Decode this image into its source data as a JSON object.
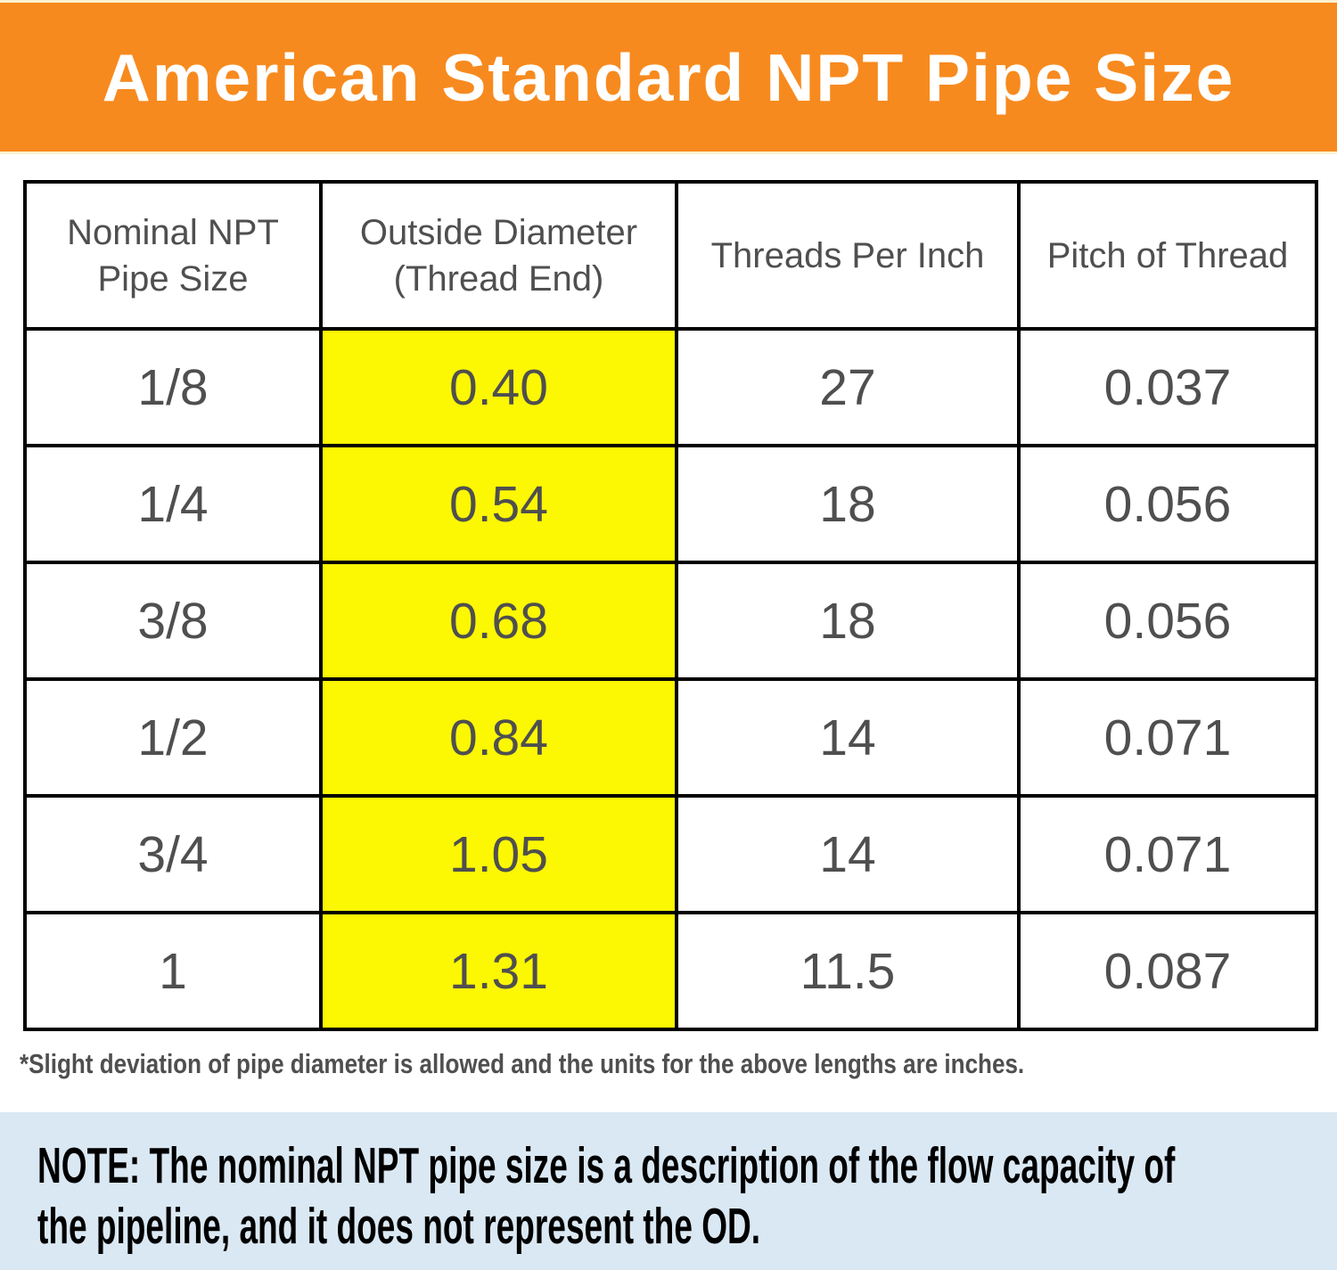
{
  "banner": {
    "title": "American Standard NPT Pipe Size"
  },
  "colors": {
    "banner_bg": "#F78A1E",
    "banner_border": "#FBF2CE",
    "highlight_yellow": "#FCF703",
    "note_bg": "#DAE8F3",
    "text_gray": "#4F4F4F",
    "border_black": "#000000",
    "title_white": "#FFFFFF"
  },
  "chart_data": {
    "type": "table",
    "title": "American Standard NPT Pipe Size",
    "columns": [
      {
        "label": "Nominal NPT Pipe Size",
        "highlight": false
      },
      {
        "label": "Outside Diameter (Thread End)",
        "highlight": true
      },
      {
        "label": "Threads Per Inch",
        "highlight": false
      },
      {
        "label": "Pitch of Thread",
        "highlight": false
      }
    ],
    "rows": [
      [
        "1/8",
        "0.40",
        "27",
        "0.037"
      ],
      [
        "1/4",
        "0.54",
        "18",
        "0.056"
      ],
      [
        "3/8",
        "0.68",
        "18",
        "0.056"
      ],
      [
        "1/2",
        "0.84",
        "14",
        "0.071"
      ],
      [
        "3/4",
        "1.05",
        "14",
        "0.071"
      ],
      [
        "1",
        "1.31",
        "11.5",
        "0.087"
      ]
    ],
    "units_note": "inches",
    "highlighted_column": "Outside Diameter (Thread End)"
  },
  "footnote": "*Slight deviation of pipe diameter is allowed and the units for the above lengths are inches.",
  "note": {
    "full_text": "NOTE: The nominal NPT pipe size is a description of the flow capacity of the pipeline, and it does not represent the OD.",
    "lines": [
      "NOTE: The nominal NPT pipe size is a description of the flow capacity of",
      "the pipeline, and it does not represent the OD."
    ]
  }
}
